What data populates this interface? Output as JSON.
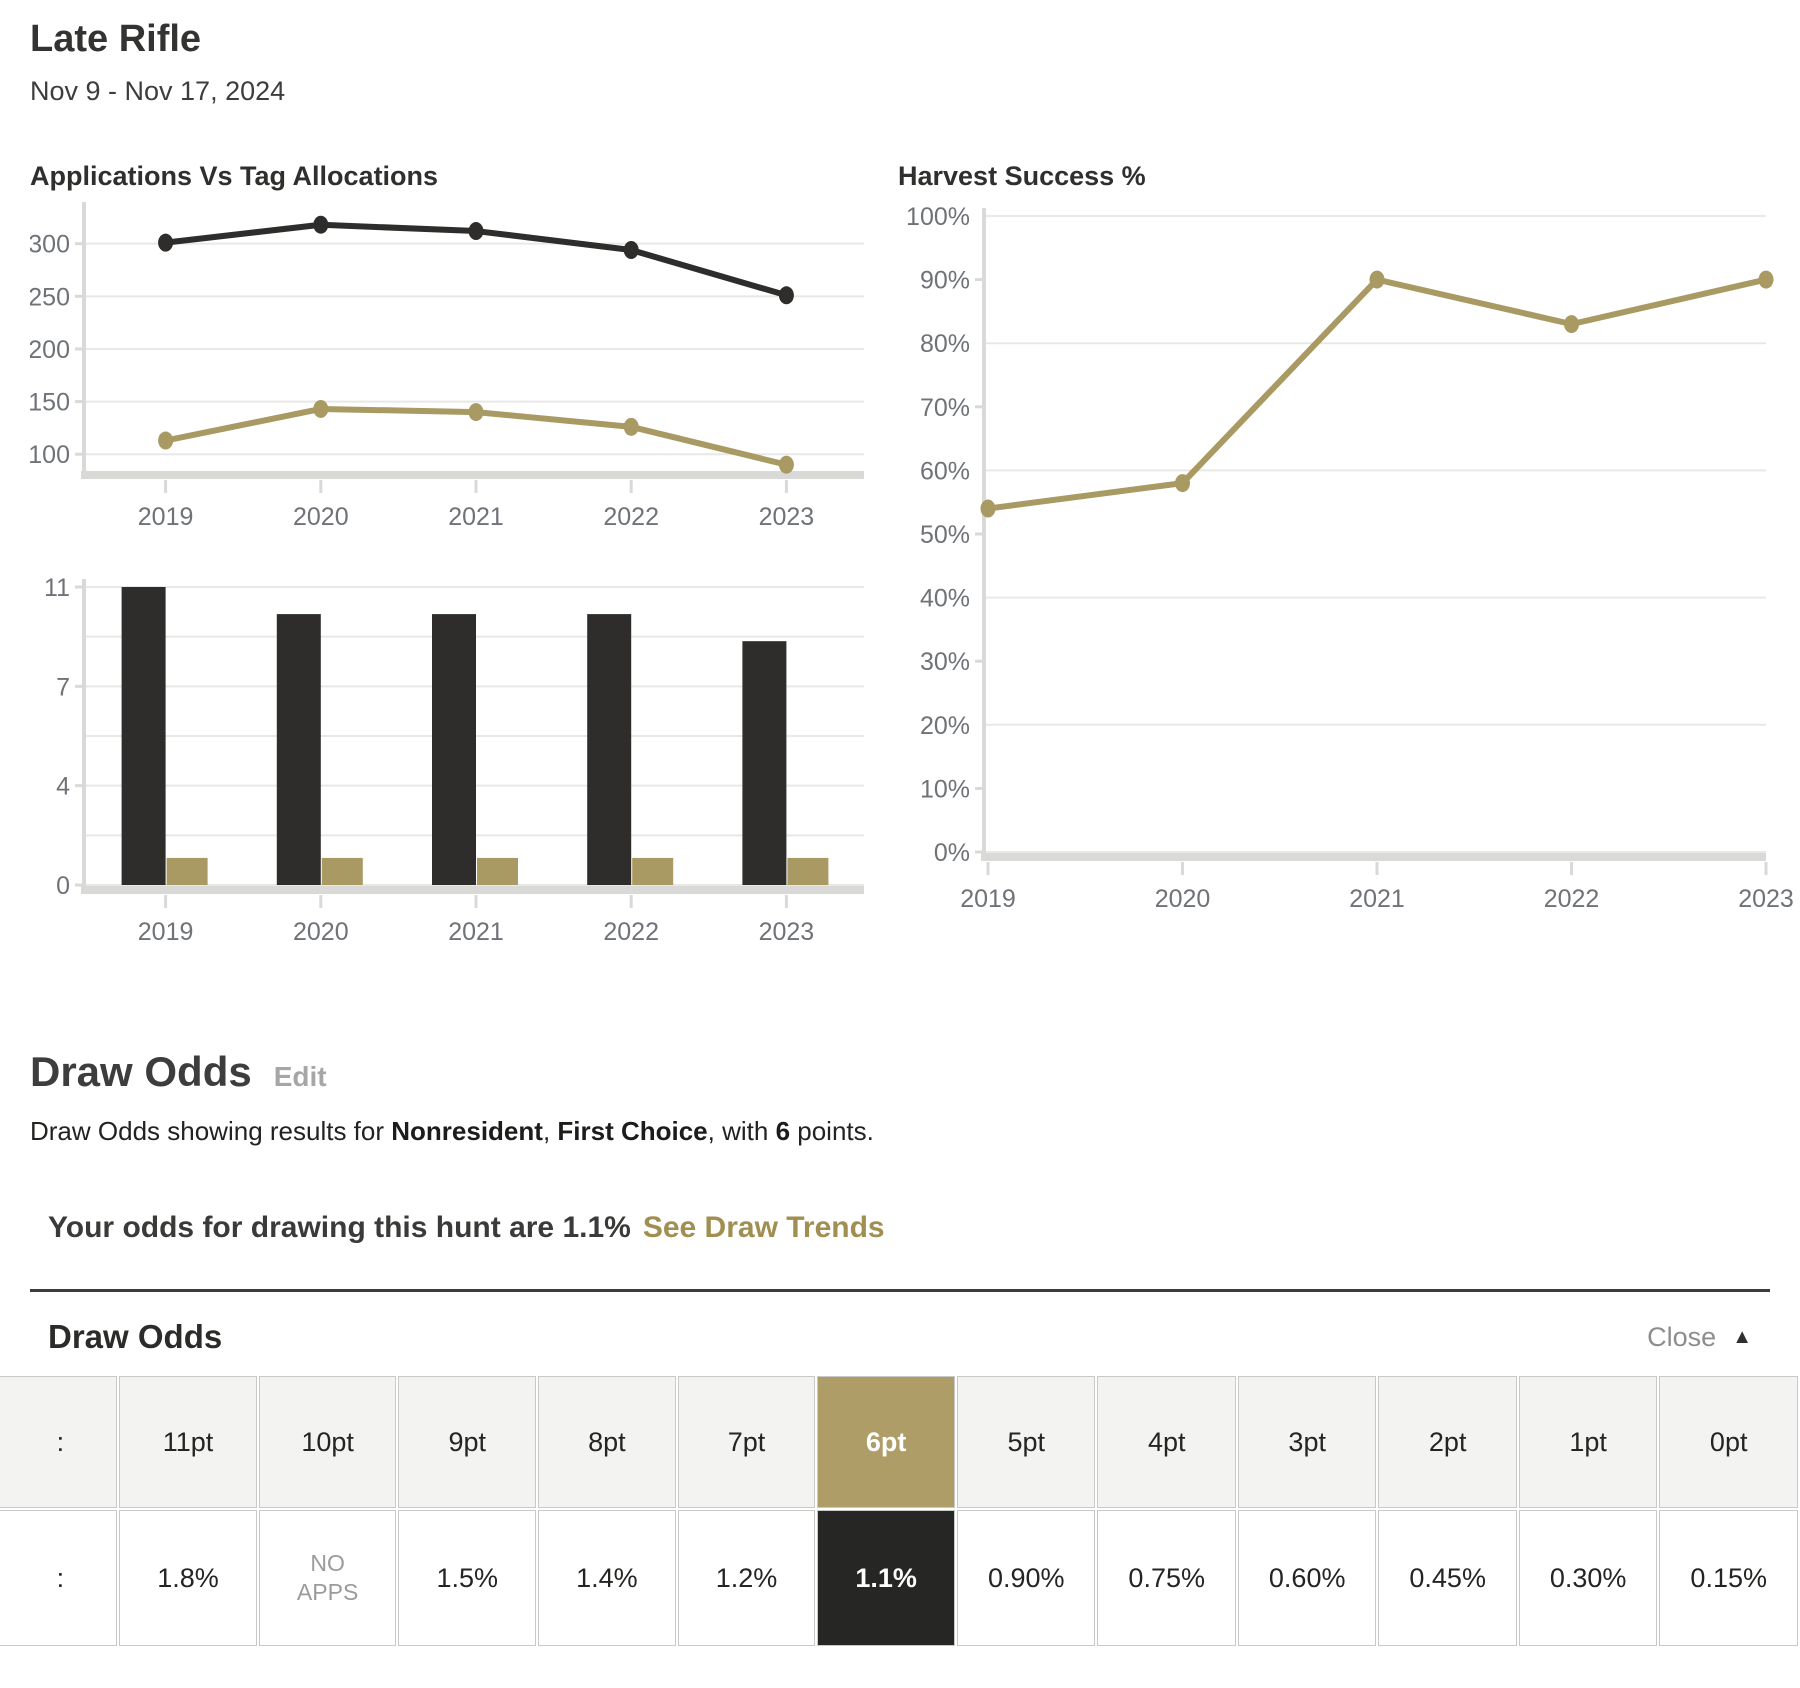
{
  "header": {
    "title": "Late Rifle",
    "date_range": "Nov 9 - Nov 17, 2024"
  },
  "colors": {
    "dark": "#2e2d2b",
    "gold": "#a89a62",
    "gold_text": "#a18e51",
    "gold_cell_bg": "#ae9d67",
    "dark_cell_bg": "#262625",
    "axis_text": "#6f7277",
    "grid_line": "#e8e8e6",
    "axis_line": "#d9d9d7",
    "muted_text": "#9b9b9b",
    "border": "#c9c9c7",
    "header_cell_bg": "#f3f3f1"
  },
  "chart_data": [
    {
      "type": "line",
      "title": "Applications Vs Tag Allocations",
      "categories": [
        "2019",
        "2020",
        "2021",
        "2022",
        "2023"
      ],
      "series": [
        {
          "name": "applications",
          "color_key": "dark",
          "values": [
            301,
            318,
            312,
            294,
            251
          ]
        },
        {
          "name": "tag allocations",
          "color_key": "gold",
          "values": [
            113,
            143,
            140,
            126,
            90
          ]
        }
      ],
      "ylim": [
        85,
        332
      ],
      "yticks": [
        {
          "v": 100,
          "label": "100",
          "grid": true,
          "stub": true
        },
        {
          "v": 150,
          "label": "150",
          "grid": true,
          "stub": true
        },
        {
          "v": 200,
          "label": "200",
          "grid": true,
          "stub": true
        },
        {
          "v": 250,
          "label": "250",
          "grid": true,
          "stub": true
        },
        {
          "v": 300,
          "label": "300",
          "grid": true,
          "stub": true
        }
      ],
      "grid": true,
      "legend": false
    },
    {
      "type": "bar",
      "title": "",
      "categories": [
        "2019",
        "2020",
        "2021",
        "2022",
        "2023"
      ],
      "series": [
        {
          "name": "dark bars",
          "color_key": "dark",
          "values": [
            11,
            10,
            10,
            10,
            9
          ]
        },
        {
          "name": "gold bars",
          "color_key": "gold",
          "values": [
            1,
            1,
            1,
            1,
            1
          ]
        }
      ],
      "ylim": [
        0,
        11
      ],
      "yticks": [
        {
          "v": 0,
          "label": "0",
          "grid": true,
          "stub": true
        },
        {
          "v": 1.833,
          "grid": true
        },
        {
          "v": 3.667,
          "label": "4",
          "grid": true,
          "stub": true
        },
        {
          "v": 5.5,
          "grid": true
        },
        {
          "v": 7.333,
          "label": "7",
          "grid": true,
          "stub": true
        },
        {
          "v": 9.167,
          "grid": true
        },
        {
          "v": 11,
          "label": "11",
          "grid": true,
          "stub": true
        }
      ],
      "grid": true,
      "legend": false
    },
    {
      "type": "line",
      "title": "Harvest Success %",
      "categories": [
        "2019",
        "2020",
        "2021",
        "2022",
        "2023"
      ],
      "series": [
        {
          "name": "harvest success",
          "color_key": "gold",
          "values": [
            54,
            58,
            90,
            83,
            90
          ]
        }
      ],
      "ylim": [
        0,
        100
      ],
      "yticks": [
        {
          "v": 0,
          "label": "0%",
          "grid": true,
          "stub": true
        },
        {
          "v": 10,
          "label": "10%",
          "stub": true
        },
        {
          "v": 20,
          "label": "20%",
          "grid": true
        },
        {
          "v": 30,
          "label": "30%",
          "stub": true
        },
        {
          "v": 40,
          "label": "40%",
          "grid": true
        },
        {
          "v": 50,
          "label": "50%",
          "stub": true
        },
        {
          "v": 60,
          "label": "60%",
          "grid": true
        },
        {
          "v": 70,
          "label": "70%",
          "stub": true
        },
        {
          "v": 80,
          "label": "80%",
          "grid": true
        },
        {
          "v": 90,
          "label": "90%",
          "stub": true
        },
        {
          "v": 100,
          "label": "100%",
          "grid": true
        }
      ],
      "x_edge_to_edge": true,
      "grid": true,
      "legend": false
    }
  ],
  "draw_odds": {
    "heading": "Draw Odds",
    "edit_label": "Edit",
    "description": {
      "part1": "Draw Odds showing results for ",
      "residency": "Nonresident",
      "part2": ", ",
      "choice": "First Choice",
      "part3": ", with ",
      "points": "6",
      "part4": " points."
    },
    "summary": {
      "text": "Your odds for drawing this hunt are 1.1%",
      "link": "See Draw Trends"
    },
    "panel": {
      "heading": "Draw Odds",
      "close_label": "Close",
      "collapse_icon": "▲"
    },
    "table": {
      "clipped_column": {
        "header_fragment": ":",
        "value_fragment": ":"
      },
      "columns": [
        {
          "label": "11pt",
          "value": "1.8%"
        },
        {
          "label": "10pt",
          "value": "NO APPS",
          "muted": true
        },
        {
          "label": "9pt",
          "value": "1.5%"
        },
        {
          "label": "8pt",
          "value": "1.4%"
        },
        {
          "label": "7pt",
          "value": "1.2%"
        },
        {
          "label": "6pt",
          "value": "1.1%",
          "highlight": true
        },
        {
          "label": "5pt",
          "value": "0.90%"
        },
        {
          "label": "4pt",
          "value": "0.75%"
        },
        {
          "label": "3pt",
          "value": "0.60%"
        },
        {
          "label": "2pt",
          "value": "0.45%"
        },
        {
          "label": "1pt",
          "value": "0.30%"
        },
        {
          "label": "0pt",
          "value": "0.15%"
        }
      ]
    }
  }
}
